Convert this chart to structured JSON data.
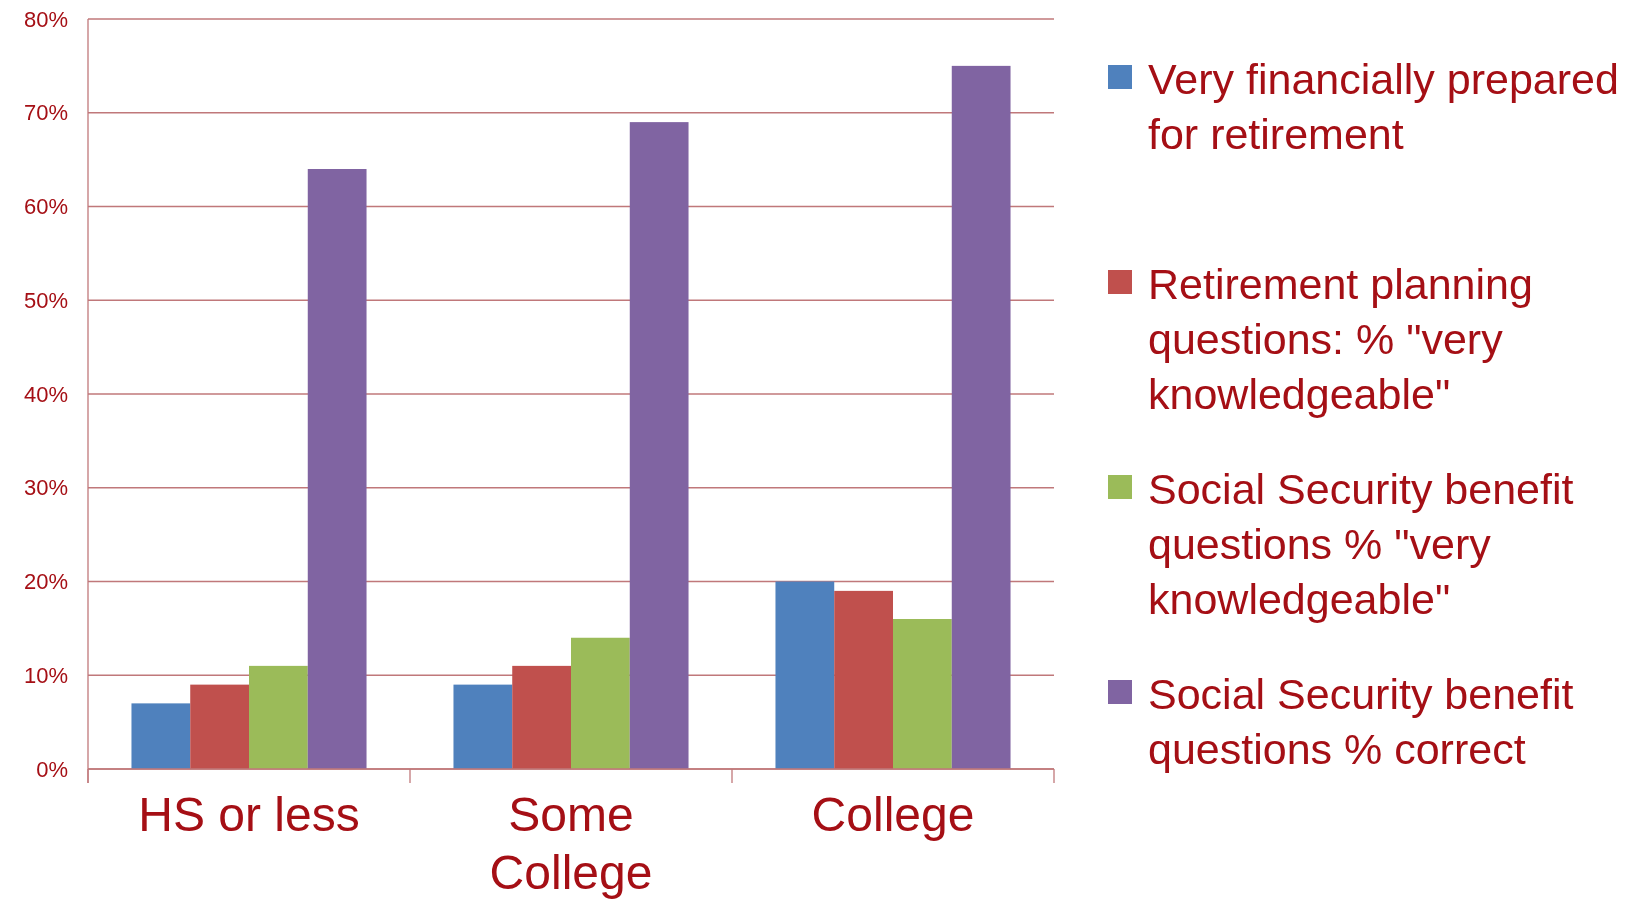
{
  "chart_data": {
    "type": "bar",
    "categories": [
      "HS or less",
      "Some College",
      "College"
    ],
    "series": [
      {
        "name": "Very financially prepared for retirement",
        "color": "#4f81bd",
        "values": [
          7,
          9,
          20
        ]
      },
      {
        "name": "Retirement planning questions: % \"very knowledgeable\"",
        "color": "#c0504d",
        "values": [
          9,
          11,
          19
        ]
      },
      {
        "name": "Social Security benefit questions % \"very knowledgeable\"",
        "color": "#9bbb59",
        "values": [
          11,
          14,
          16
        ]
      },
      {
        "name": "Social Security benefit questions % correct",
        "color": "#8064a2",
        "values": [
          64,
          69,
          75
        ]
      }
    ],
    "ylim": [
      0,
      80
    ],
    "yticks": [
      {
        "value": 0,
        "label": "0%"
      },
      {
        "value": 10,
        "label": "10%"
      },
      {
        "value": 20,
        "label": "20%"
      },
      {
        "value": 30,
        "label": "30%"
      },
      {
        "value": 40,
        "label": "40%"
      },
      {
        "value": 50,
        "label": "50%"
      },
      {
        "value": 60,
        "label": "60%"
      },
      {
        "value": 70,
        "label": "70%"
      },
      {
        "value": 80,
        "label": "80%"
      }
    ],
    "grid": "y",
    "legend": "right"
  }
}
